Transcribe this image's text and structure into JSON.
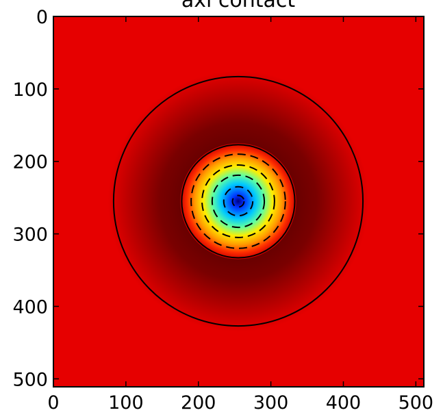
{
  "chart_data": {
    "type": "heatmap",
    "title": "axi contact",
    "xlabel": "",
    "ylabel": "",
    "xlim": [
      0,
      511
    ],
    "ylim": [
      511,
      0
    ],
    "x_ticks": [
      "0",
      "100",
      "200",
      "300",
      "400",
      "500"
    ],
    "y_ticks": [
      "0",
      "100",
      "200",
      "300",
      "400",
      "500"
    ],
    "x_tick_values": [
      0,
      100,
      200,
      300,
      400,
      500
    ],
    "y_tick_values": [
      0,
      100,
      200,
      300,
      400,
      500
    ],
    "colormap": "jet",
    "background_color": "#e60000",
    "field": {
      "center": [
        255,
        255
      ],
      "inner_core_radius": 80,
      "outer_ring_radius": 172,
      "description_values": {
        "center_level": "min",
        "background_level": "near-max"
      }
    },
    "contours": {
      "solid": [
        {
          "center": [
            255,
            255
          ],
          "radius": 172
        },
        {
          "center": [
            255,
            255
          ],
          "radius": 78
        }
      ],
      "dashed": [
        {
          "center": [
            255,
            255
          ],
          "radius": 65
        },
        {
          "center": [
            255,
            255
          ],
          "radius": 50
        },
        {
          "center": [
            255,
            255
          ],
          "radius": 36
        },
        {
          "center": [
            255,
            255
          ],
          "radius": 20
        },
        {
          "center": [
            255,
            255
          ],
          "radius": 8
        }
      ]
    },
    "grid": false
  }
}
